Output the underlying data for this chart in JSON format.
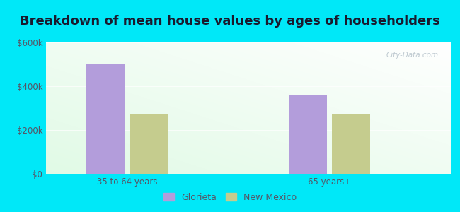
{
  "title": "Breakdown of mean house values by ages of householders",
  "categories": [
    "35 to 64 years",
    "65 years+"
  ],
  "glorieta_values": [
    500000,
    360000
  ],
  "newmexico_values": [
    270000,
    270000
  ],
  "glorieta_color": "#b39ddb",
  "newmexico_color": "#c5cc8e",
  "bar_width": 0.28,
  "ylim": [
    0,
    600000
  ],
  "yticks": [
    0,
    200000,
    400000,
    600000
  ],
  "ytick_labels": [
    "$0",
    "$200k",
    "$400k",
    "$600k"
  ],
  "legend_labels": [
    "Glorieta",
    "New Mexico"
  ],
  "outer_bg": "#00e8f8",
  "title_fontsize": 13,
  "tick_fontsize": 8.5,
  "legend_fontsize": 9,
  "watermark": "City-Data.com",
  "title_color": "#1a1a2e",
  "tick_color": "#555566"
}
